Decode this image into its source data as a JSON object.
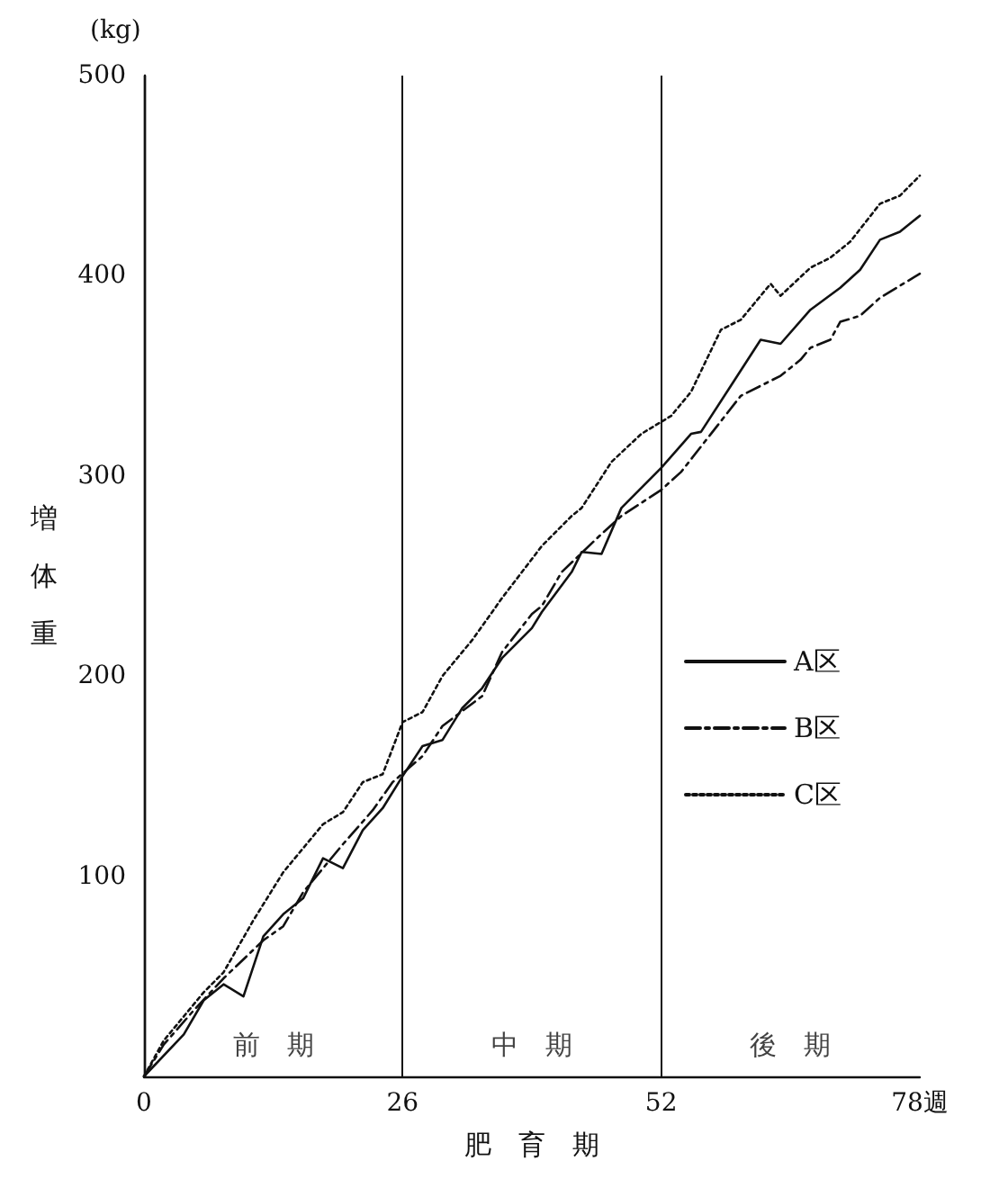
{
  "chart_data": {
    "type": "line",
    "xlabel": "肥　育　期",
    "ylabel": "増体重",
    "annotations": [
      "(kg)",
      "前　期",
      "中　期",
      "後　期"
    ],
    "xlim": [
      0,
      78
    ],
    "xticks": [
      0,
      26,
      52,
      {
        "value": 78,
        "label": "78週"
      }
    ],
    "ylim": [
      0,
      500
    ],
    "yticks": [
      100,
      200,
      300,
      400,
      500
    ],
    "grid": false,
    "legend": "right",
    "marker": "none",
    "ref_lines": [
      {
        "axis": "x",
        "value": 26,
        "label": null
      },
      {
        "axis": "x",
        "value": 52,
        "label": null
      }
    ],
    "series": [
      {
        "name": "A区",
        "color": "#111111",
        "line_style": "solid",
        "x": [
          0,
          4,
          6,
          8,
          10,
          12,
          14,
          16,
          18,
          20,
          22,
          24,
          26,
          28,
          30,
          32,
          34,
          36,
          39,
          40,
          43,
          44,
          46,
          48,
          52,
          55,
          56,
          59,
          62,
          64,
          67,
          70,
          72,
          74,
          76,
          78
        ],
        "values": [
          0,
          21,
          38,
          46,
          40,
          70,
          81,
          89,
          109,
          104,
          123,
          134,
          150,
          165,
          168,
          184,
          194,
          209,
          224,
          232,
          252,
          262,
          261,
          284,
          304,
          321,
          322,
          345,
          368,
          366,
          383,
          394,
          403,
          418,
          422,
          430
        ]
      },
      {
        "name": "B区",
        "color": "#111111",
        "line_style": "dashdot",
        "x": [
          0,
          2,
          5,
          8,
          12,
          14,
          16,
          20,
          23,
          25,
          28,
          30,
          34,
          36,
          39,
          40,
          42,
          46,
          48,
          52,
          54,
          57,
          60,
          64,
          66,
          67,
          69,
          70,
          72,
          74,
          78
        ],
        "values": [
          0,
          16,
          33,
          49,
          68,
          75,
          92,
          116,
          133,
          147,
          160,
          175,
          190,
          212,
          231,
          235,
          252,
          271,
          280,
          293,
          302,
          321,
          340,
          350,
          358,
          364,
          368,
          377,
          380,
          389,
          401
        ]
      },
      {
        "name": "C区",
        "color": "#111111",
        "line_style": "dotted",
        "x": [
          0,
          2,
          6,
          8,
          11,
          14,
          18,
          20,
          22,
          24,
          26,
          28,
          30,
          33,
          36,
          40,
          43,
          44,
          47,
          50,
          53,
          55,
          58,
          60,
          63,
          64,
          67,
          69,
          71,
          74,
          76,
          78
        ],
        "values": [
          0,
          18,
          42,
          52,
          78,
          102,
          126,
          132,
          147,
          151,
          177,
          182,
          200,
          218,
          239,
          265,
          280,
          284,
          307,
          321,
          330,
          342,
          373,
          378,
          396,
          390,
          404,
          409,
          417,
          436,
          440,
          450
        ]
      }
    ]
  }
}
